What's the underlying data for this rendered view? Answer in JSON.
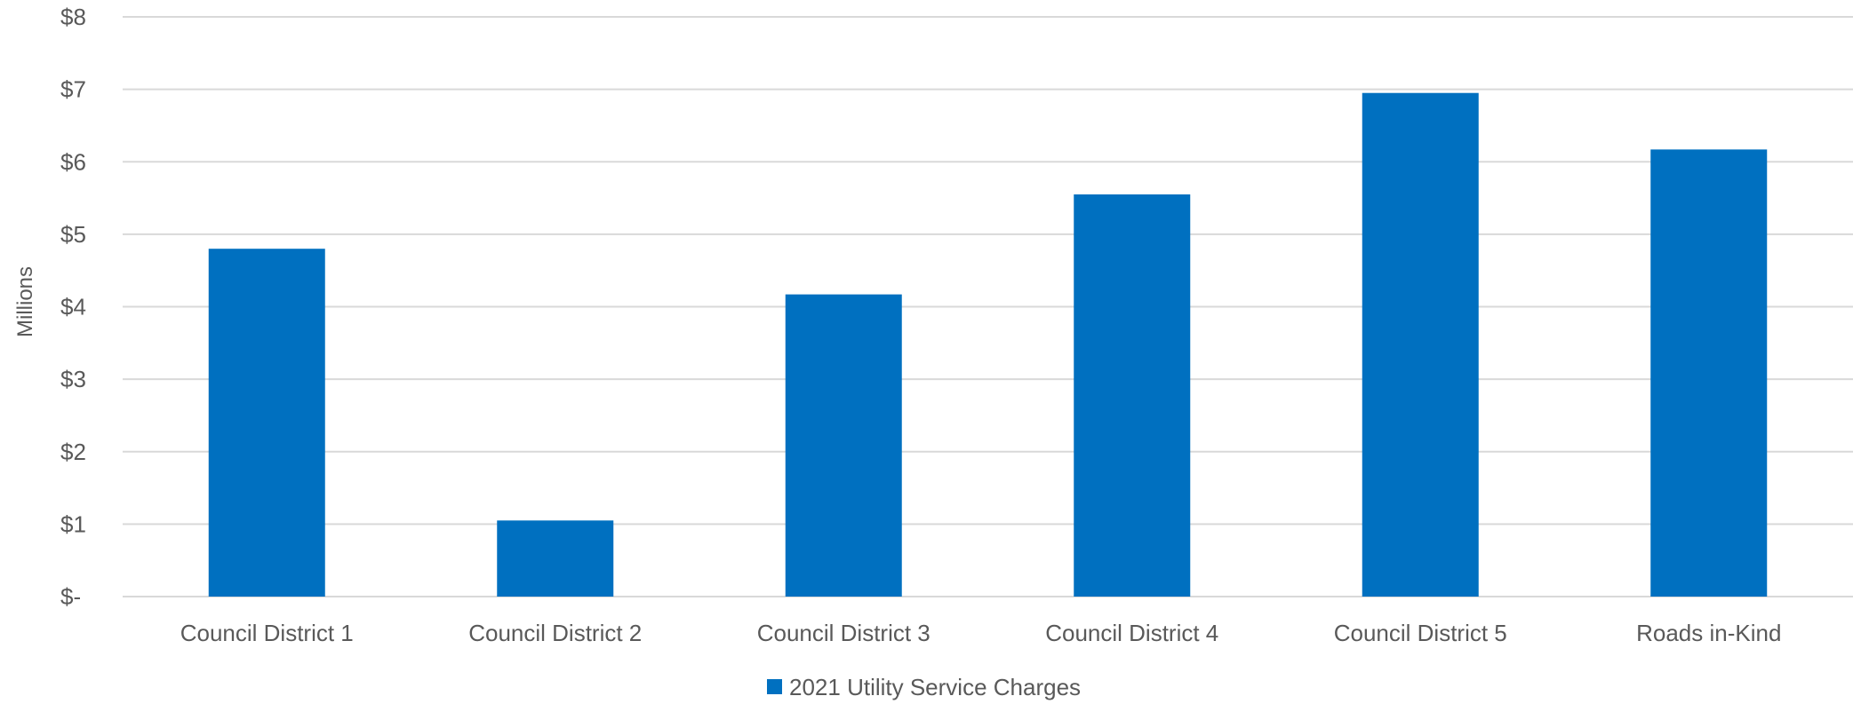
{
  "chart_data": {
    "type": "bar",
    "ylabel": "Millions",
    "xlabel": "",
    "categories": [
      "Council District 1",
      "Council District 2",
      "Council District 3",
      "Council District 4",
      "Council District 5",
      "Roads in-Kind"
    ],
    "series": [
      {
        "name": "2021 Utility Service Charges",
        "values": [
          4.8,
          1.05,
          4.17,
          5.55,
          6.95,
          6.17
        ]
      }
    ],
    "ylim": [
      0,
      8
    ],
    "yticks": [
      0,
      1,
      2,
      3,
      4,
      5,
      6,
      7,
      8
    ],
    "ytick_labels": [
      "$-",
      "$1",
      "$2",
      "$3",
      "$4",
      "$5",
      "$6",
      "$7",
      "$8"
    ],
    "grid": true,
    "legend_position": "bottom",
    "colors": {
      "bar": "#0070C0",
      "grid": "#D9D9D9",
      "text": "#595959"
    }
  }
}
